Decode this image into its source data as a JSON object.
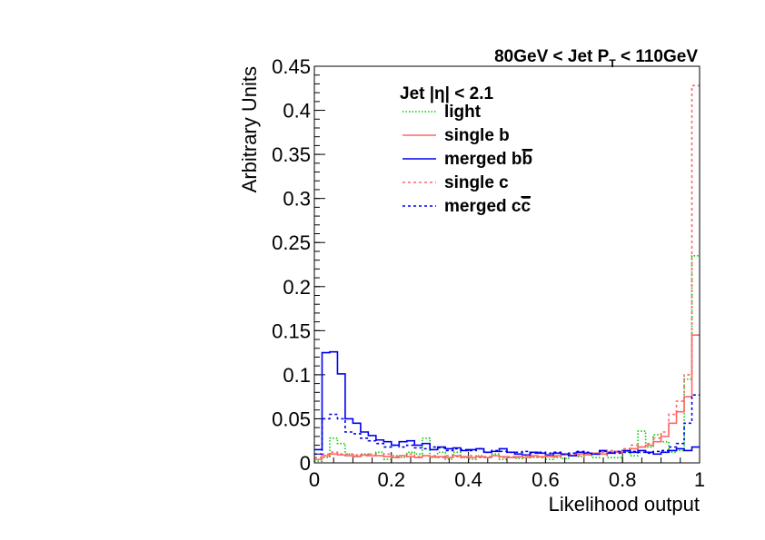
{
  "chart_data": {
    "type": "line",
    "title": "80GeV < Jet P_T < 110GeV",
    "title_parts": {
      "prefix": "80GeV < Jet P",
      "sub": "T",
      "suffix": " < 110GeV"
    },
    "xlabel": "Likelihood output",
    "ylabel": "Arbitrary Units",
    "xlim": [
      0,
      1
    ],
    "ylim": [
      0,
      0.45
    ],
    "x_ticks": [
      "0",
      "0.2",
      "0.4",
      "0.6",
      "0.8",
      "1"
    ],
    "y_ticks": [
      "0",
      "0.05",
      "0.1",
      "0.15",
      "0.2",
      "0.25",
      "0.3",
      "0.35",
      "0.4",
      "0.45"
    ],
    "legend_header": "Jet |η| < 2.1",
    "legend_position": "top-left inside plot",
    "grid": false,
    "bins": 50,
    "series": [
      {
        "name": "light",
        "label_main": "light",
        "label_bar": "",
        "color": "#00cc00",
        "dash": "1.5,2",
        "values": [
          0.002,
          0.006,
          0.028,
          0.022,
          0.01,
          0.008,
          0.01,
          0.008,
          0.012,
          0.004,
          0.008,
          0.006,
          0.012,
          0.01,
          0.028,
          0.006,
          0.012,
          0.004,
          0.012,
          0.006,
          0.004,
          0.008,
          0.006,
          0.01,
          0.004,
          0.006,
          0.005,
          0.008,
          0.006,
          0.007,
          0.004,
          0.006,
          0.005,
          0.008,
          0.007,
          0.009,
          0.006,
          0.01,
          0.006,
          0.006,
          0.012,
          0.008,
          0.036,
          0.018,
          0.032,
          0.024,
          0.012,
          0.014,
          0.095,
          0.235
        ]
      },
      {
        "name": "single b",
        "label_main": "single b",
        "label_bar": "",
        "color": "#ff6666",
        "dash": "",
        "values": [
          0.004,
          0.008,
          0.01,
          0.009,
          0.008,
          0.007,
          0.009,
          0.008,
          0.008,
          0.007,
          0.006,
          0.008,
          0.007,
          0.006,
          0.008,
          0.007,
          0.007,
          0.006,
          0.008,
          0.007,
          0.006,
          0.007,
          0.006,
          0.008,
          0.007,
          0.006,
          0.007,
          0.006,
          0.008,
          0.007,
          0.007,
          0.008,
          0.009,
          0.008,
          0.01,
          0.009,
          0.011,
          0.01,
          0.012,
          0.012,
          0.013,
          0.016,
          0.018,
          0.02,
          0.024,
          0.03,
          0.045,
          0.058,
          0.075,
          0.145
        ]
      },
      {
        "name": "merged bb̄",
        "label_main": "merged b",
        "label_bar": "b",
        "color": "#0000ee",
        "dash": "",
        "values": [
          0.015,
          0.125,
          0.126,
          0.101,
          0.05,
          0.045,
          0.035,
          0.031,
          0.026,
          0.024,
          0.02,
          0.024,
          0.025,
          0.02,
          0.022,
          0.015,
          0.018,
          0.016,
          0.017,
          0.014,
          0.015,
          0.016,
          0.012,
          0.013,
          0.016,
          0.012,
          0.01,
          0.009,
          0.012,
          0.011,
          0.009,
          0.011,
          0.01,
          0.008,
          0.012,
          0.011,
          0.01,
          0.014,
          0.011,
          0.013,
          0.014,
          0.012,
          0.014,
          0.012,
          0.01,
          0.012,
          0.014,
          0.016,
          0.014,
          0.018
        ]
      },
      {
        "name": "single c",
        "label_main": "single c",
        "label_bar": "",
        "color": "#ff6666",
        "dash": "3,3",
        "values": [
          0.006,
          0.01,
          0.012,
          0.01,
          0.01,
          0.009,
          0.008,
          0.01,
          0.008,
          0.01,
          0.007,
          0.008,
          0.01,
          0.007,
          0.008,
          0.008,
          0.006,
          0.008,
          0.007,
          0.006,
          0.008,
          0.006,
          0.007,
          0.008,
          0.006,
          0.007,
          0.006,
          0.008,
          0.007,
          0.006,
          0.008,
          0.007,
          0.009,
          0.01,
          0.008,
          0.01,
          0.011,
          0.012,
          0.014,
          0.013,
          0.016,
          0.02,
          0.018,
          0.022,
          0.028,
          0.035,
          0.055,
          0.07,
          0.1,
          0.428
        ]
      },
      {
        "name": "merged cc̄",
        "label_main": "merged c",
        "label_bar": "c",
        "color": "#0000ee",
        "dash": "3,3",
        "values": [
          0.01,
          0.05,
          0.055,
          0.05,
          0.035,
          0.033,
          0.028,
          0.025,
          0.022,
          0.018,
          0.02,
          0.018,
          0.02,
          0.017,
          0.016,
          0.018,
          0.017,
          0.014,
          0.016,
          0.015,
          0.014,
          0.016,
          0.012,
          0.014,
          0.013,
          0.012,
          0.012,
          0.013,
          0.011,
          0.012,
          0.011,
          0.012,
          0.01,
          0.011,
          0.013,
          0.012,
          0.01,
          0.013,
          0.012,
          0.011,
          0.012,
          0.013,
          0.012,
          0.011,
          0.013,
          0.014,
          0.018,
          0.022,
          0.045,
          0.077
        ]
      }
    ]
  }
}
